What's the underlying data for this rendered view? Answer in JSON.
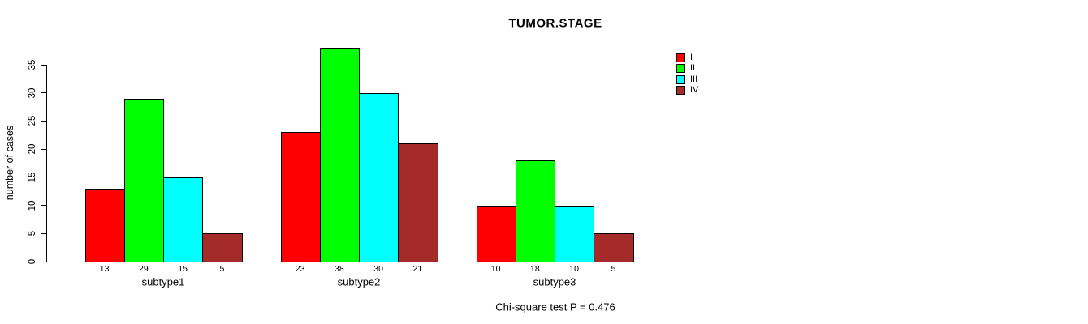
{
  "chart_data": {
    "type": "bar",
    "title": "TUMOR.STAGE",
    "ylabel": "number of cases",
    "xlabel": "",
    "categories": [
      "subtype1",
      "subtype2",
      "subtype3"
    ],
    "series": [
      {
        "name": "I",
        "color": "#ff0000",
        "values": [
          13,
          23,
          10
        ]
      },
      {
        "name": "II",
        "color": "#00ff00",
        "values": [
          29,
          38,
          18
        ]
      },
      {
        "name": "III",
        "color": "#00ffff",
        "values": [
          15,
          30,
          10
        ]
      },
      {
        "name": "IV",
        "color": "#a52a2a",
        "values": [
          5,
          21,
          5
        ]
      }
    ],
    "bar_value_labels": {
      "subtype1": [
        13,
        29,
        15,
        5
      ],
      "subtype2": [
        23,
        38,
        30,
        21
      ],
      "subtype3": [
        10,
        18,
        10,
        5
      ]
    },
    "yticks": [
      0,
      5,
      10,
      15,
      20,
      25,
      30,
      35
    ],
    "ylim": [
      0,
      38
    ],
    "grid": false,
    "legend_position": "top-right",
    "legend_labels": [
      "I",
      "II",
      "III",
      "IV"
    ],
    "annotation": "Chi-square test P = 0.476",
    "axis_color": "#000000",
    "bar_border_color": "#000000",
    "background_color": "#ffffff"
  }
}
